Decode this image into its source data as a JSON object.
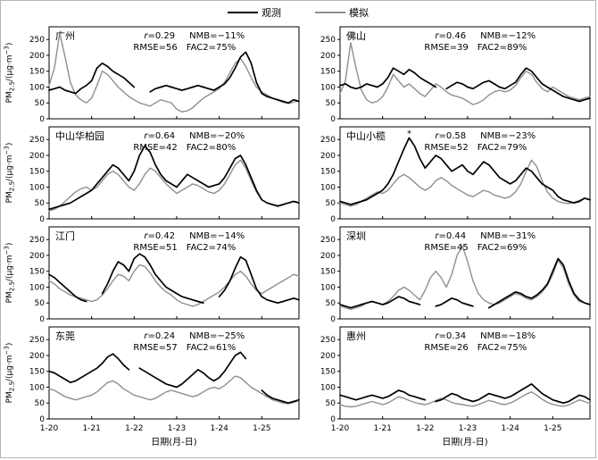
{
  "legend": {
    "obs": "观测",
    "sim": "模拟"
  },
  "colors": {
    "obs": "#000000",
    "sim": "#8f8f8f"
  },
  "chart_data": {
    "type": "line",
    "title": "",
    "xlabel": "日期(月-日)",
    "ylabel_parts": {
      "base": "PM",
      "sub": "2.5",
      "mid": "/(μg·m",
      "sup": "−3",
      "end": ")"
    },
    "x_ticks": [
      "1-20",
      "1-21",
      "1-22",
      "1-23",
      "1-24",
      "1-25"
    ],
    "points_per_day": 8,
    "y_ticks": [
      0,
      50,
      100,
      150,
      200,
      250
    ],
    "ylim": [
      0,
      290
    ],
    "grid": false,
    "legend_position": "top-center",
    "series_names": [
      "观测",
      "模拟"
    ],
    "panels": [
      {
        "city": "广州",
        "stats": {
          "r": "0.29",
          "NMB": "−11%",
          "RMSE": "56",
          "FAC2": "75%"
        },
        "obs": [
          90,
          95,
          100,
          90,
          85,
          80,
          95,
          105,
          120,
          160,
          175,
          165,
          150,
          140,
          130,
          115,
          100,
          null,
          null,
          85,
          95,
          100,
          105,
          100,
          95,
          90,
          95,
          100,
          105,
          100,
          95,
          90,
          100,
          110,
          130,
          160,
          195,
          210,
          175,
          115,
          80,
          70,
          65,
          60,
          55,
          50,
          60,
          55
        ],
        "sim": [
          105,
          160,
          270,
          195,
          115,
          75,
          60,
          50,
          65,
          105,
          150,
          140,
          120,
          100,
          85,
          70,
          60,
          50,
          45,
          40,
          50,
          60,
          55,
          50,
          30,
          22,
          25,
          35,
          50,
          65,
          75,
          85,
          95,
          115,
          145,
          175,
          190,
          165,
          130,
          100,
          85,
          75,
          65,
          58,
          52,
          48,
          52,
          58
        ]
      },
      {
        "city": "佛山",
        "stats": {
          "r": "0.46",
          "NMB": "−12%",
          "RMSE": "39",
          "FAC2": "89%"
        },
        "obs": [
          105,
          110,
          100,
          95,
          100,
          110,
          105,
          100,
          110,
          130,
          160,
          150,
          140,
          155,
          145,
          130,
          120,
          110,
          100,
          null,
          95,
          105,
          115,
          110,
          100,
          95,
          105,
          115,
          120,
          110,
          100,
          95,
          105,
          115,
          140,
          160,
          150,
          130,
          110,
          100,
          90,
          80,
          70,
          65,
          60,
          55,
          60,
          65
        ],
        "sim": [
          80,
          120,
          240,
          160,
          90,
          60,
          50,
          55,
          70,
          100,
          140,
          120,
          100,
          110,
          95,
          80,
          70,
          90,
          110,
          100,
          85,
          75,
          70,
          65,
          55,
          45,
          50,
          60,
          75,
          85,
          90,
          85,
          90,
          105,
          130,
          150,
          140,
          115,
          95,
          85,
          100,
          90,
          80,
          70,
          65,
          60,
          65,
          70
        ]
      },
      {
        "city": "中山华柏园",
        "stats": {
          "r": "0.64",
          "NMB": "−20%",
          "RMSE": "42",
          "FAC2": "80%"
        },
        "obs": [
          30,
          35,
          40,
          45,
          50,
          60,
          70,
          80,
          90,
          110,
          130,
          150,
          170,
          160,
          140,
          120,
          150,
          200,
          230,
          210,
          170,
          140,
          120,
          110,
          100,
          120,
          140,
          130,
          120,
          110,
          100,
          105,
          110,
          130,
          160,
          190,
          200,
          170,
          130,
          90,
          60,
          50,
          45,
          40,
          45,
          50,
          55,
          50
        ],
        "sim": [
          25,
          30,
          40,
          55,
          70,
          85,
          95,
          100,
          90,
          100,
          120,
          140,
          150,
          140,
          120,
          100,
          90,
          110,
          140,
          160,
          150,
          130,
          110,
          95,
          80,
          90,
          100,
          110,
          105,
          95,
          85,
          80,
          90,
          110,
          140,
          170,
          185,
          160,
          120,
          85,
          60,
          50,
          45,
          42,
          45,
          50,
          55,
          52
        ]
      },
      {
        "city": "中山小榄",
        "stats": {
          "r": "0.58",
          "NMB": "−23%",
          "RMSE": "52",
          "FAC2": "79%"
        },
        "annotation": {
          "index": 13,
          "label": "*"
        },
        "obs": [
          55,
          50,
          45,
          50,
          55,
          60,
          70,
          80,
          90,
          110,
          140,
          180,
          220,
          255,
          230,
          190,
          160,
          180,
          200,
          190,
          170,
          150,
          160,
          170,
          150,
          140,
          160,
          180,
          170,
          150,
          130,
          120,
          110,
          120,
          140,
          160,
          150,
          130,
          110,
          100,
          90,
          70,
          60,
          55,
          50,
          55,
          65,
          60
        ],
        "sim": [
          50,
          45,
          40,
          45,
          55,
          65,
          75,
          85,
          80,
          90,
          110,
          130,
          140,
          130,
          115,
          100,
          90,
          100,
          120,
          130,
          120,
          105,
          95,
          85,
          75,
          70,
          80,
          90,
          85,
          75,
          70,
          65,
          70,
          85,
          110,
          150,
          185,
          165,
          120,
          85,
          65,
          55,
          50,
          48,
          52,
          58,
          65,
          60
        ]
      },
      {
        "city": "江门",
        "stats": {
          "r": "0.42",
          "NMB": "−14%",
          "RMSE": "51",
          "FAC2": "74%"
        },
        "obs": [
          140,
          130,
          115,
          100,
          85,
          70,
          60,
          55,
          null,
          null,
          80,
          110,
          150,
          180,
          170,
          150,
          190,
          205,
          195,
          170,
          140,
          120,
          100,
          90,
          80,
          70,
          65,
          60,
          55,
          50,
          null,
          null,
          70,
          90,
          120,
          160,
          195,
          185,
          140,
          95,
          70,
          60,
          55,
          50,
          55,
          60,
          65,
          60
        ],
        "sim": [
          120,
          110,
          95,
          85,
          75,
          70,
          65,
          60,
          55,
          60,
          75,
          95,
          120,
          140,
          135,
          120,
          150,
          170,
          165,
          145,
          120,
          100,
          85,
          75,
          60,
          50,
          45,
          40,
          45,
          55,
          65,
          75,
          85,
          100,
          120,
          140,
          150,
          135,
          110,
          90,
          80,
          90,
          100,
          110,
          120,
          130,
          140,
          135
        ]
      },
      {
        "city": "深圳",
        "stats": {
          "r": "0.44",
          "NMB": "−31%",
          "RMSE": "45",
          "FAC2": "69%"
        },
        "obs": [
          45,
          40,
          35,
          40,
          45,
          50,
          55,
          50,
          45,
          50,
          60,
          70,
          65,
          55,
          50,
          45,
          null,
          null,
          40,
          45,
          55,
          65,
          60,
          50,
          45,
          40,
          null,
          null,
          35,
          45,
          55,
          65,
          75,
          85,
          80,
          70,
          65,
          75,
          90,
          110,
          150,
          190,
          170,
          120,
          80,
          60,
          50,
          45
        ],
        "sim": [
          40,
          35,
          30,
          35,
          40,
          50,
          55,
          50,
          45,
          55,
          70,
          90,
          100,
          90,
          75,
          60,
          90,
          130,
          150,
          130,
          100,
          140,
          200,
          230,
          180,
          120,
          80,
          60,
          50,
          45,
          50,
          60,
          70,
          80,
          75,
          65,
          60,
          70,
          85,
          105,
          140,
          185,
          160,
          110,
          75,
          55,
          50,
          45
        ]
      },
      {
        "city": "东莞",
        "stats": {
          "r": "0.24",
          "NMB": "−25%",
          "RMSE": "57",
          "FAC2": "61%"
        },
        "obs": [
          150,
          145,
          135,
          125,
          115,
          120,
          130,
          140,
          150,
          160,
          175,
          195,
          205,
          190,
          170,
          155,
          null,
          160,
          150,
          140,
          130,
          120,
          110,
          105,
          100,
          110,
          125,
          140,
          155,
          145,
          130,
          120,
          130,
          150,
          175,
          200,
          210,
          190,
          null,
          null,
          90,
          75,
          65,
          60,
          55,
          50,
          55,
          60
        ],
        "sim": [
          95,
          90,
          80,
          70,
          65,
          60,
          65,
          70,
          75,
          85,
          100,
          115,
          120,
          110,
          95,
          85,
          75,
          70,
          65,
          60,
          65,
          75,
          85,
          90,
          85,
          80,
          75,
          70,
          75,
          85,
          95,
          100,
          95,
          105,
          120,
          135,
          130,
          115,
          100,
          90,
          80,
          70,
          60,
          55,
          50,
          48,
          52,
          58
        ]
      },
      {
        "city": "惠州",
        "stats": {
          "r": "0.34",
          "NMB": "−18%",
          "RMSE": "26",
          "FAC2": "75%"
        },
        "obs": [
          75,
          70,
          65,
          60,
          65,
          70,
          75,
          70,
          65,
          70,
          80,
          90,
          85,
          75,
          70,
          65,
          60,
          null,
          55,
          60,
          70,
          80,
          75,
          65,
          60,
          55,
          60,
          70,
          80,
          75,
          70,
          65,
          70,
          80,
          90,
          100,
          110,
          95,
          80,
          70,
          60,
          55,
          50,
          55,
          65,
          75,
          70,
          60
        ],
        "sim": [
          45,
          40,
          38,
          40,
          45,
          50,
          55,
          50,
          45,
          50,
          60,
          70,
          65,
          58,
          52,
          48,
          45,
          50,
          58,
          65,
          60,
          52,
          48,
          45,
          42,
          40,
          45,
          52,
          58,
          54,
          48,
          45,
          50,
          58,
          68,
          78,
          85,
          75,
          62,
          52,
          46,
          42,
          40,
          44,
          52,
          60,
          55,
          48
        ]
      }
    ]
  }
}
